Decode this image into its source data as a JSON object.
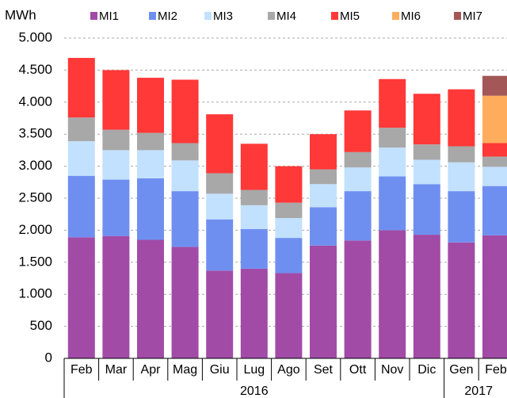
{
  "chart_data": {
    "type": "stacked_bar",
    "y_label": "MWh",
    "categories": [
      "Feb",
      "Mar",
      "Apr",
      "Mag",
      "Giu",
      "Lug",
      "Ago",
      "Set",
      "Ott",
      "Nov",
      "Dic",
      "Gen",
      "Feb"
    ],
    "category_groups": [
      {
        "label": "2016",
        "count": 11
      },
      {
        "label": "2017",
        "count": 2
      }
    ],
    "series": [
      {
        "name": "MI1",
        "color": "#a14ba7",
        "values": [
          1890,
          1910,
          1850,
          1740,
          1370,
          1400,
          1330,
          1760,
          1840,
          2000,
          1930,
          1810,
          1920
        ]
      },
      {
        "name": "MI2",
        "color": "#6f8ff0",
        "values": [
          960,
          880,
          960,
          870,
          800,
          620,
          550,
          600,
          770,
          840,
          790,
          800,
          770
        ]
      },
      {
        "name": "MI3",
        "color": "#c2e1ff",
        "values": [
          540,
          460,
          440,
          480,
          400,
          370,
          310,
          360,
          370,
          450,
          380,
          450,
          300
        ]
      },
      {
        "name": "MI4",
        "color": "#a8a8a8",
        "values": [
          370,
          320,
          270,
          270,
          320,
          240,
          240,
          230,
          240,
          310,
          240,
          250,
          160
        ]
      },
      {
        "name": "MI5",
        "color": "#ff3838",
        "values": [
          930,
          930,
          860,
          990,
          920,
          720,
          570,
          550,
          650,
          760,
          790,
          890,
          210
        ]
      },
      {
        "name": "MI6",
        "color": "#ffad5c",
        "values": [
          null,
          null,
          null,
          null,
          null,
          null,
          null,
          null,
          null,
          null,
          null,
          null,
          740
        ]
      },
      {
        "name": "MI7",
        "color": "#a35757",
        "values": [
          null,
          null,
          null,
          null,
          null,
          null,
          null,
          null,
          null,
          null,
          null,
          null,
          310
        ]
      }
    ],
    "ylim": [
      0,
      5000
    ],
    "yticks": [
      0,
      500,
      {
        "value": 1000,
        "label": "1.000"
      },
      {
        "value": 1500,
        "label": "1.500"
      },
      {
        "value": 2000,
        "label": "2.000"
      },
      {
        "value": 2500,
        "label": "2.500"
      },
      {
        "value": 3000,
        "label": "3.000"
      },
      {
        "value": 3500,
        "label": "3.500"
      },
      {
        "value": 4000,
        "label": "4.000"
      },
      {
        "value": 4500,
        "label": "4.500"
      },
      {
        "value": 5000,
        "label": "5.000"
      }
    ],
    "grid": true
  }
}
